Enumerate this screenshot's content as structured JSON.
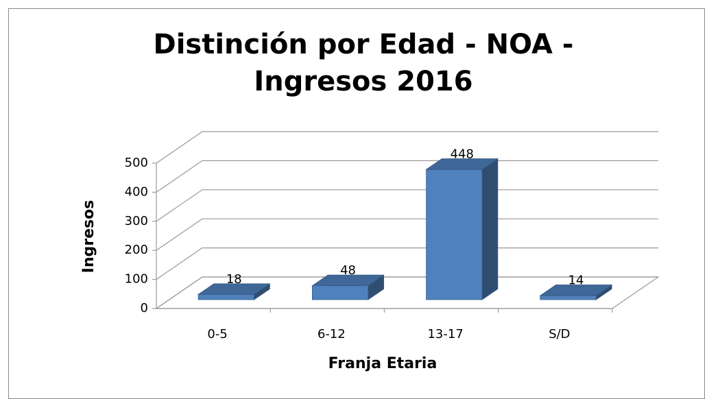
{
  "chart_data": {
    "type": "bar3d",
    "title": "Distinción por Edad - NOA - Ingresos 2016",
    "x_label": "Franja Etaria",
    "y_label": "Ingresos",
    "categories": [
      "0-5",
      "6-12",
      "13-17",
      "S/D"
    ],
    "values": [
      18,
      48,
      448,
      14
    ],
    "color": "#4f81bd",
    "ylim": [
      0,
      500
    ],
    "yticks": [
      0,
      100,
      200,
      300,
      400,
      500
    ],
    "grid": true
  }
}
